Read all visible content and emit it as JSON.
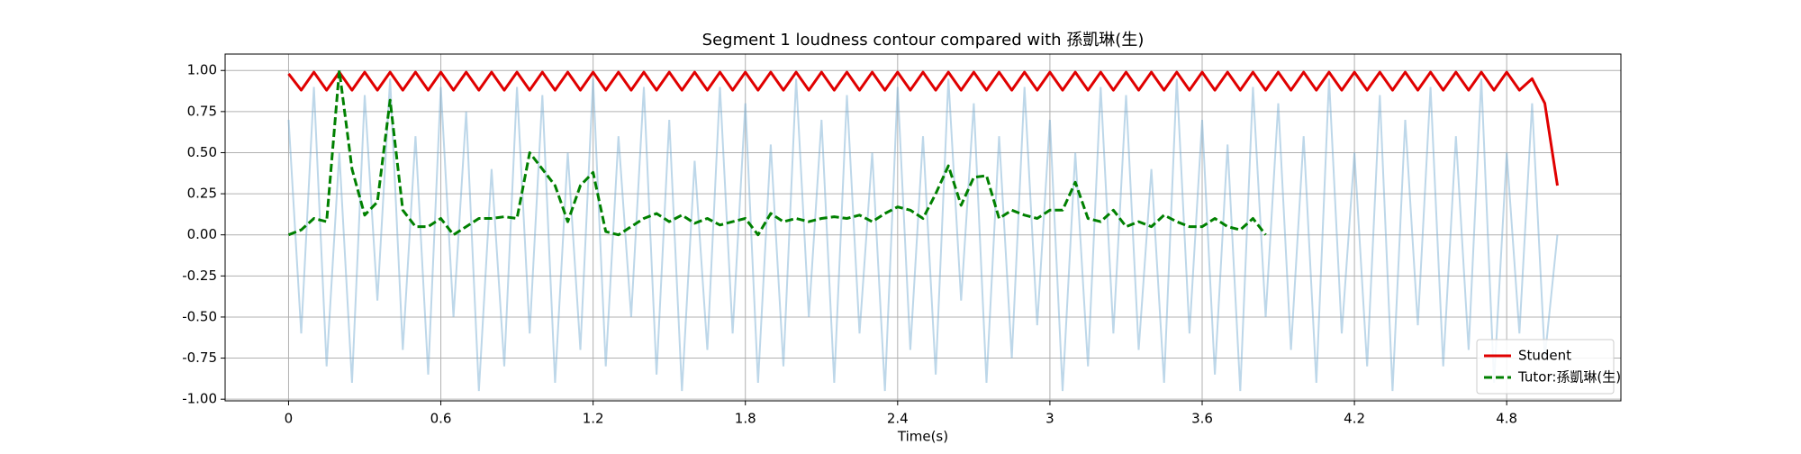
{
  "chart_data": {
    "type": "line",
    "title": "Segment 1 loudness contour compared with 孫凱琳(生)",
    "xlabel": "Time(s)",
    "x": [
      0,
      0.05,
      0.1,
      0.15,
      0.2,
      0.25,
      0.3,
      0.35,
      0.4,
      0.45,
      0.5,
      0.55,
      0.6,
      0.65,
      0.7,
      0.75,
      0.8,
      0.85,
      0.9,
      0.95,
      1.0,
      1.05,
      1.1,
      1.15,
      1.2,
      1.25,
      1.3,
      1.35,
      1.4,
      1.45,
      1.5,
      1.55,
      1.6,
      1.65,
      1.7,
      1.75,
      1.8,
      1.85,
      1.9,
      1.95,
      2.0,
      2.05,
      2.1,
      2.15,
      2.2,
      2.25,
      2.3,
      2.35,
      2.4,
      2.45,
      2.5,
      2.55,
      2.6,
      2.65,
      2.7,
      2.75,
      2.8,
      2.85,
      2.9,
      2.95,
      3.0,
      3.05,
      3.1,
      3.15,
      3.2,
      3.25,
      3.3,
      3.35,
      3.4,
      3.45,
      3.5,
      3.55,
      3.6,
      3.65,
      3.7,
      3.75,
      3.8,
      3.85,
      3.9,
      3.95,
      4.0,
      4.05,
      4.1,
      4.15,
      4.2,
      4.25,
      4.3,
      4.35,
      4.4,
      4.45,
      4.5,
      4.55,
      4.6,
      4.65,
      4.7,
      4.75,
      4.8,
      4.85,
      4.9,
      4.95,
      5.0
    ],
    "series": [
      {
        "name": "Student",
        "color": "#e00000",
        "dash": false,
        "values": [
          0.98,
          0.88,
          0.99,
          0.88,
          0.99,
          0.88,
          0.99,
          0.88,
          0.99,
          0.88,
          0.99,
          0.88,
          0.99,
          0.88,
          0.99,
          0.88,
          0.99,
          0.88,
          0.99,
          0.88,
          0.99,
          0.88,
          0.99,
          0.88,
          0.99,
          0.88,
          0.99,
          0.88,
          0.99,
          0.88,
          0.99,
          0.88,
          0.99,
          0.88,
          0.99,
          0.88,
          0.99,
          0.88,
          0.99,
          0.88,
          0.99,
          0.88,
          0.99,
          0.88,
          0.99,
          0.88,
          0.99,
          0.88,
          0.99,
          0.88,
          0.99,
          0.88,
          0.99,
          0.88,
          0.99,
          0.88,
          0.99,
          0.88,
          0.99,
          0.88,
          0.99,
          0.88,
          0.99,
          0.88,
          0.99,
          0.88,
          0.99,
          0.88,
          0.99,
          0.88,
          0.99,
          0.88,
          0.99,
          0.88,
          0.99,
          0.88,
          0.99,
          0.88,
          0.99,
          0.88,
          0.99,
          0.88,
          0.99,
          0.88,
          0.99,
          0.88,
          0.99,
          0.88,
          0.99,
          0.88,
          0.99,
          0.88,
          0.99,
          0.88,
          0.99,
          0.88,
          0.99,
          0.88,
          0.95,
          0.8,
          0.3
        ]
      },
      {
        "name": "Tutor:孫凱琳(生)",
        "color": "#008000",
        "dash": true,
        "values": [
          0.0,
          0.03,
          0.1,
          0.08,
          1.0,
          0.4,
          0.12,
          0.2,
          0.82,
          0.15,
          0.05,
          0.05,
          0.1,
          0.0,
          0.05,
          0.1,
          0.1,
          0.11,
          0.1,
          0.5,
          0.4,
          0.3,
          0.08,
          0.3,
          0.38,
          0.02,
          0.0,
          0.05,
          0.1,
          0.13,
          0.08,
          0.12,
          0.07,
          0.1,
          0.06,
          0.08,
          0.1,
          0.0,
          0.13,
          0.08,
          0.1,
          0.08,
          0.1,
          0.11,
          0.1,
          0.12,
          0.08,
          0.13,
          0.17,
          0.15,
          0.1,
          0.25,
          0.42,
          0.18,
          0.35,
          0.36,
          0.1,
          0.15,
          0.12,
          0.1,
          0.15,
          0.15,
          0.32,
          0.1,
          0.08,
          0.15,
          0.05,
          0.08,
          0.05,
          0.12,
          0.08,
          0.05,
          0.05,
          0.1,
          0.05,
          0.03,
          0.1,
          0.0,
          null,
          null,
          null,
          null,
          null,
          null,
          null,
          null,
          null,
          null,
          null,
          null,
          null,
          null,
          null,
          null,
          null,
          null,
          null,
          null,
          null,
          null,
          null
        ]
      }
    ],
    "waveform": {
      "color": "#7bafd4",
      "values": [
        0.7,
        -0.6,
        0.9,
        -0.8,
        0.5,
        -0.9,
        0.85,
        -0.4,
        0.95,
        -0.7,
        0.6,
        -0.85,
        0.9,
        -0.5,
        0.75,
        -0.95,
        0.4,
        -0.8,
        0.9,
        -0.6,
        0.85,
        -0.9,
        0.5,
        -0.7,
        0.95,
        -0.8,
        0.6,
        -0.5,
        0.9,
        -0.85,
        0.7,
        -0.95,
        0.45,
        -0.7,
        0.9,
        -0.6,
        0.8,
        -0.9,
        0.55,
        -0.8,
        0.95,
        -0.5,
        0.7,
        -0.9,
        0.85,
        -0.6,
        0.5,
        -0.95,
        0.9,
        -0.7,
        0.6,
        -0.85,
        0.95,
        -0.4,
        0.8,
        -0.9,
        0.6,
        -0.75,
        0.9,
        -0.55,
        0.7,
        -0.95,
        0.5,
        -0.8,
        0.9,
        -0.6,
        0.85,
        -0.7,
        0.4,
        -0.9,
        0.95,
        -0.6,
        0.7,
        -0.85,
        0.55,
        -0.95,
        0.9,
        -0.5,
        0.8,
        -0.7,
        0.6,
        -0.9,
        0.95,
        -0.6,
        0.5,
        -0.8,
        0.85,
        -0.95,
        0.7,
        -0.55,
        0.9,
        -0.8,
        0.6,
        -0.7,
        0.95,
        -0.9,
        0.5,
        -0.6,
        0.8,
        -0.75,
        0.0
      ]
    },
    "xlim": [
      -0.25,
      5.25
    ],
    "ylim": [
      -1.01,
      1.1
    ],
    "xticks": [
      0,
      0.6,
      1.2,
      1.8,
      2.4,
      3,
      3.6,
      4.2,
      4.8
    ],
    "yticks": [
      {
        "value": 1,
        "label": "1.00"
      },
      {
        "value": 0.75,
        "label": "0.75"
      },
      {
        "value": 0.5,
        "label": "0.50"
      },
      {
        "value": 0.25,
        "label": "0.25"
      },
      {
        "value": 0,
        "label": "0.00"
      },
      {
        "value": -0.25,
        "label": "-0.25"
      },
      {
        "value": -0.5,
        "label": "-0.50"
      },
      {
        "value": -0.75,
        "label": "-0.75"
      },
      {
        "value": -1,
        "label": "-1.00"
      }
    ],
    "grid": true,
    "legend": "lower right"
  }
}
